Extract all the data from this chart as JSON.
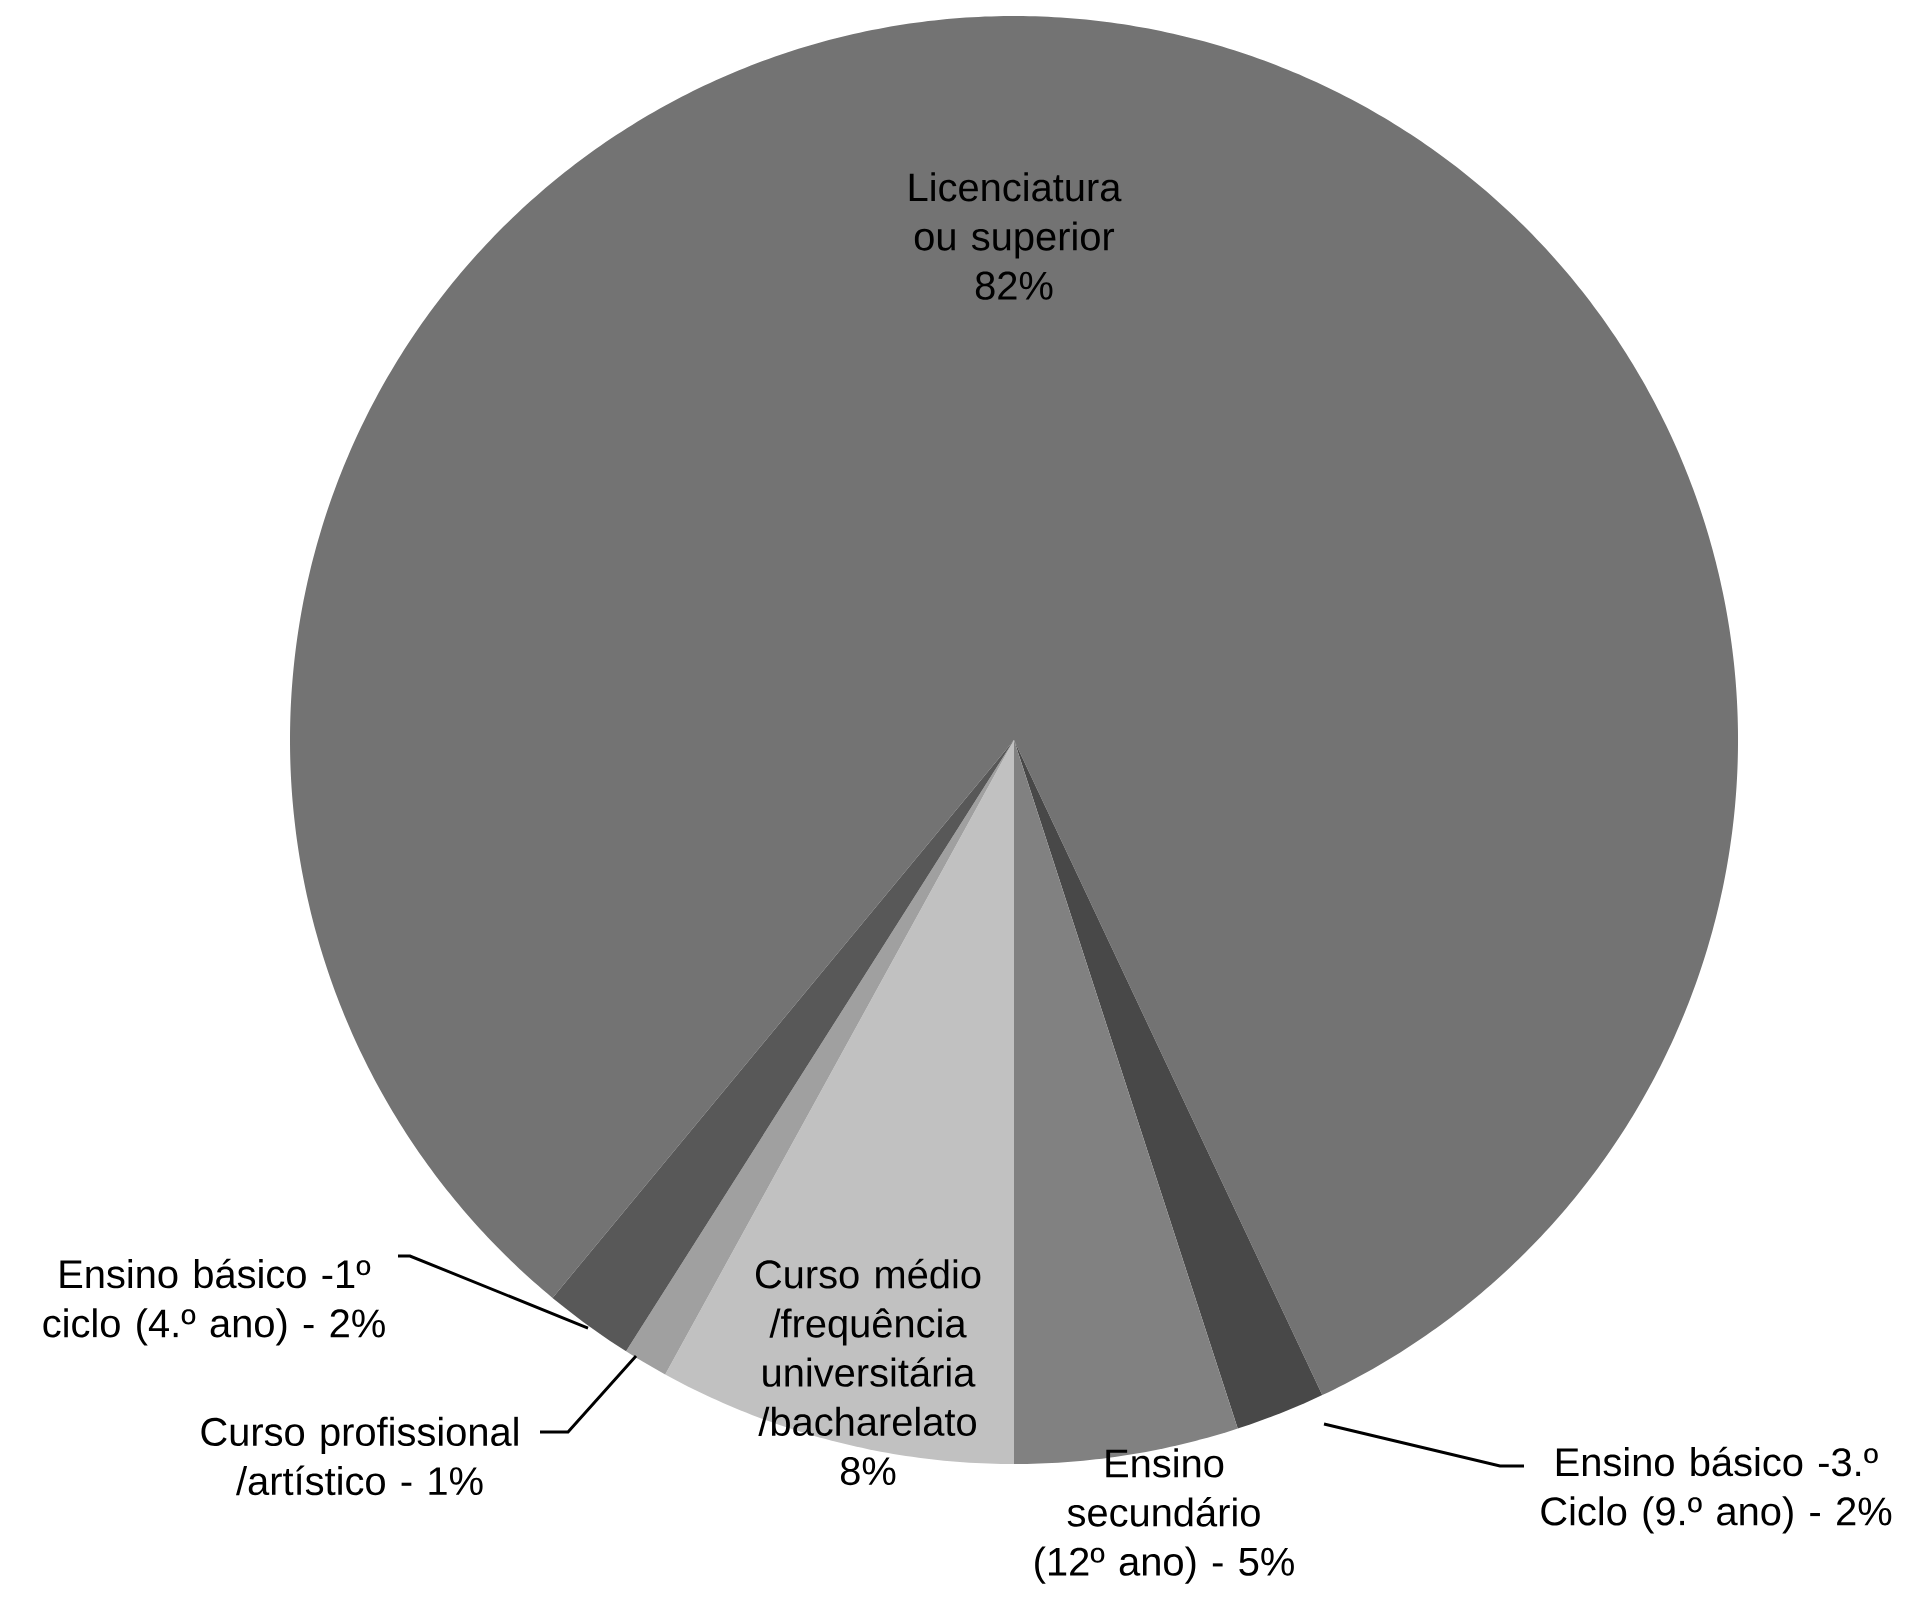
{
  "chart_data": {
    "type": "pie",
    "categories": [
      "Licenciatura ou superior",
      "Ensino básico -3.º Ciclo (9.º ano) -",
      "Ensino secundário (12º ano) -",
      "Curso médio /frequência universitária /bacharelato",
      "Curso profissional /artístico -",
      "Ensino básico -1º ciclo (4.º ano) -"
    ],
    "values": [
      82,
      2,
      5,
      8,
      1,
      2
    ],
    "value_labels": [
      "82%",
      "2%",
      "5%",
      "8%",
      "1%",
      "2%"
    ],
    "colors": [
      "#737373",
      "#484848",
      "#818181",
      "#c1c1c1",
      "#a0a0a0",
      "#585858"
    ]
  }
}
